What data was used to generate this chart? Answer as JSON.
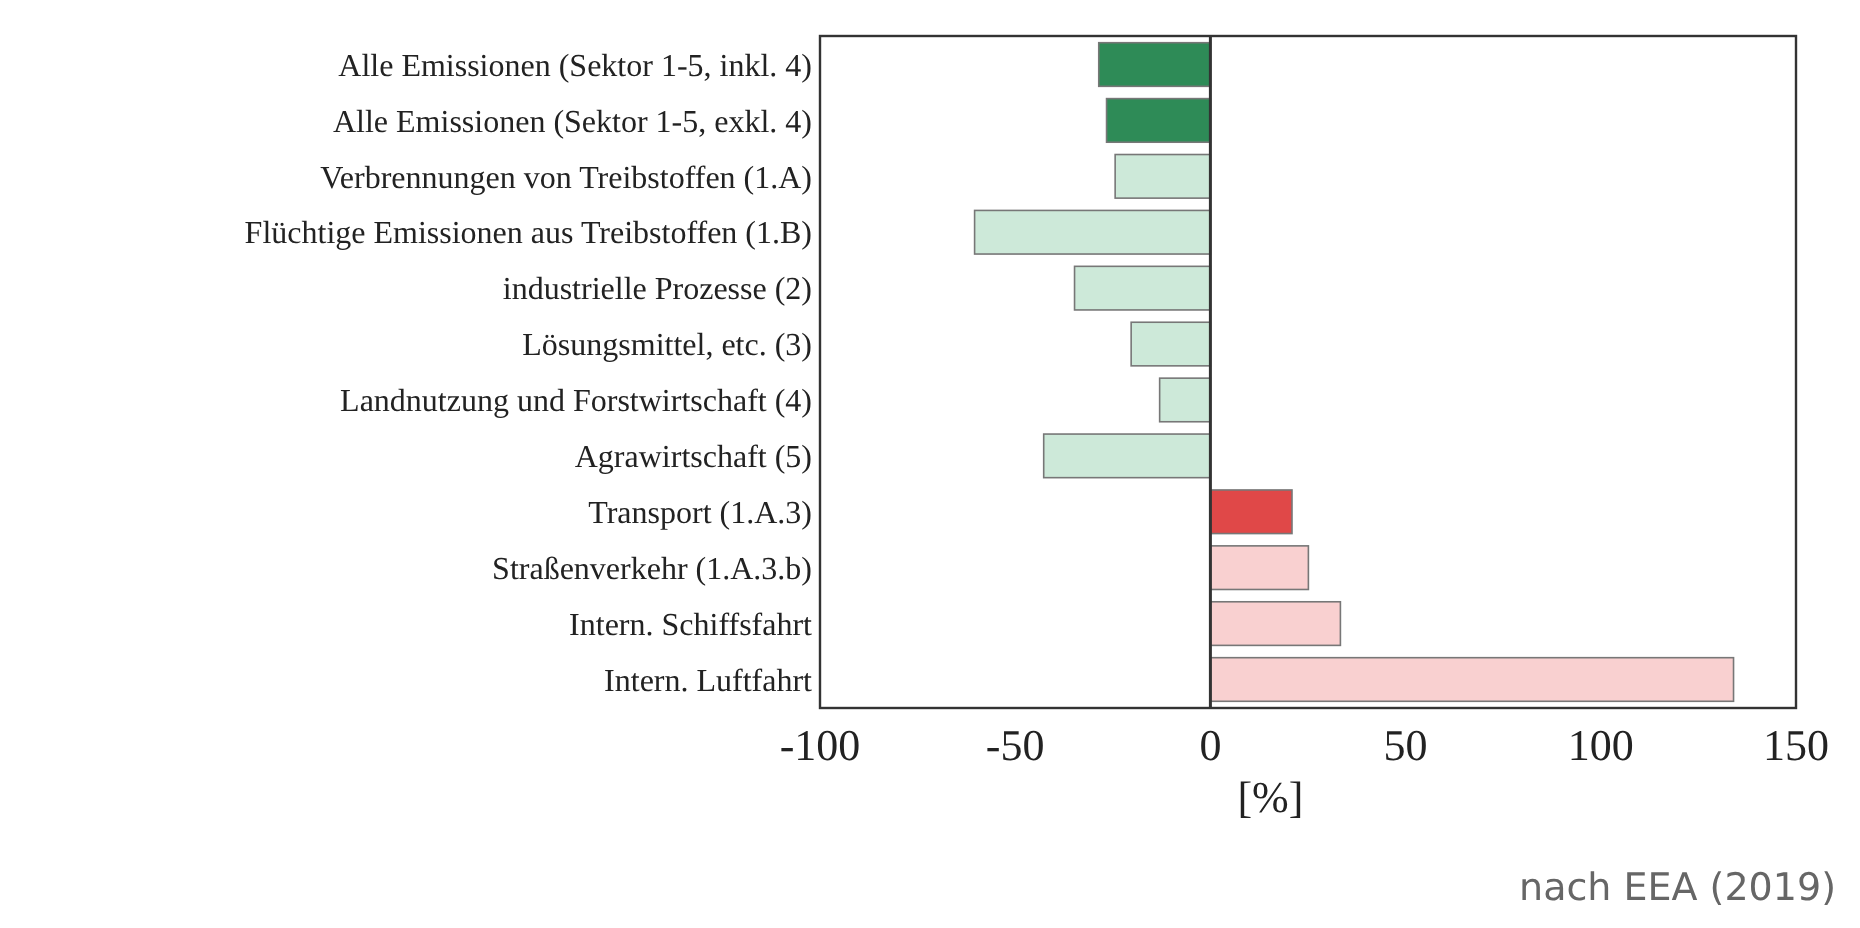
{
  "chart_data": {
    "type": "bar",
    "orientation": "horizontal",
    "xlabel": "[%]",
    "categories": [
      "Alle Emissionen (Sektor 1-5, inkl. 4)",
      "Alle Emissionen (Sektor 1-5, exkl. 4)",
      "Verbrennungen von Treibstoffen (1.A)",
      "Flüchtige Emissionen aus Treibstoffen (1.B)",
      "industrielle Prozesse (2)",
      "Lösungsmittel, etc. (3)",
      "Landnutzung und Forstwirtschaft (4)",
      "Agrawirtschaft (5)",
      "Transport (1.A.3)",
      "Straßenverkehr (1.A.3.b)",
      "Intern. Schiffsfahrt",
      "Intern. Luftfahrt"
    ],
    "values": [
      -28.6,
      -26.6,
      -24.4,
      -60.4,
      -34.8,
      -20.3,
      -13,
      -42.7,
      20.9,
      25.1,
      33.3,
      134
    ],
    "colors": [
      "#2e8b57",
      "#2e8b57",
      "#cde9d9",
      "#cde9d9",
      "#cde9d9",
      "#cde9d9",
      "#cde9d9",
      "#cde9d9",
      "#e04848",
      "#f9d0d0",
      "#f9d0d0",
      "#f9d0d0"
    ],
    "xlim": [
      -100,
      150
    ],
    "xticks": [
      -100,
      -50,
      0,
      50,
      100,
      150
    ],
    "ref_lines": [
      {
        "axis": "x",
        "value": 0,
        "color": "#333333"
      }
    ],
    "annotations": [
      "nach EEA (2019)"
    ]
  }
}
